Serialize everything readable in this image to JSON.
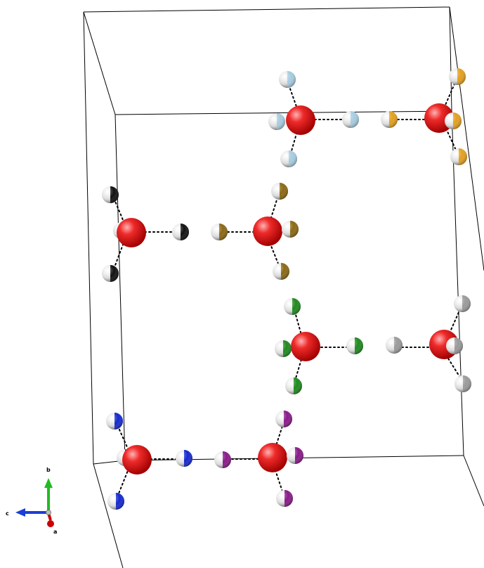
{
  "axes": {
    "a_label": "a",
    "b_label": "b",
    "c_label": "c",
    "a_color": "#cc0000",
    "b_color": "#22bb22",
    "c_color": "#1a3fd6"
  },
  "colors": {
    "oxygen": "#e01818",
    "hydrogen_neutral": "#ffffff",
    "cell_edge": "#000000",
    "hbond": "#000000",
    "molecule_1_hydrogen": "#a8cce0",
    "molecule_2_hydrogen": "#e3a020",
    "molecule_3_hydrogen": "#111111",
    "molecule_4_hydrogen": "#8b6914",
    "molecule_5_hydrogen": "#1f8a1f",
    "molecule_6_hydrogen": "#9a9a9a",
    "molecule_7_hydrogen": "#1428d0",
    "molecule_8_hydrogen": "#8a1a8a"
  }
}
